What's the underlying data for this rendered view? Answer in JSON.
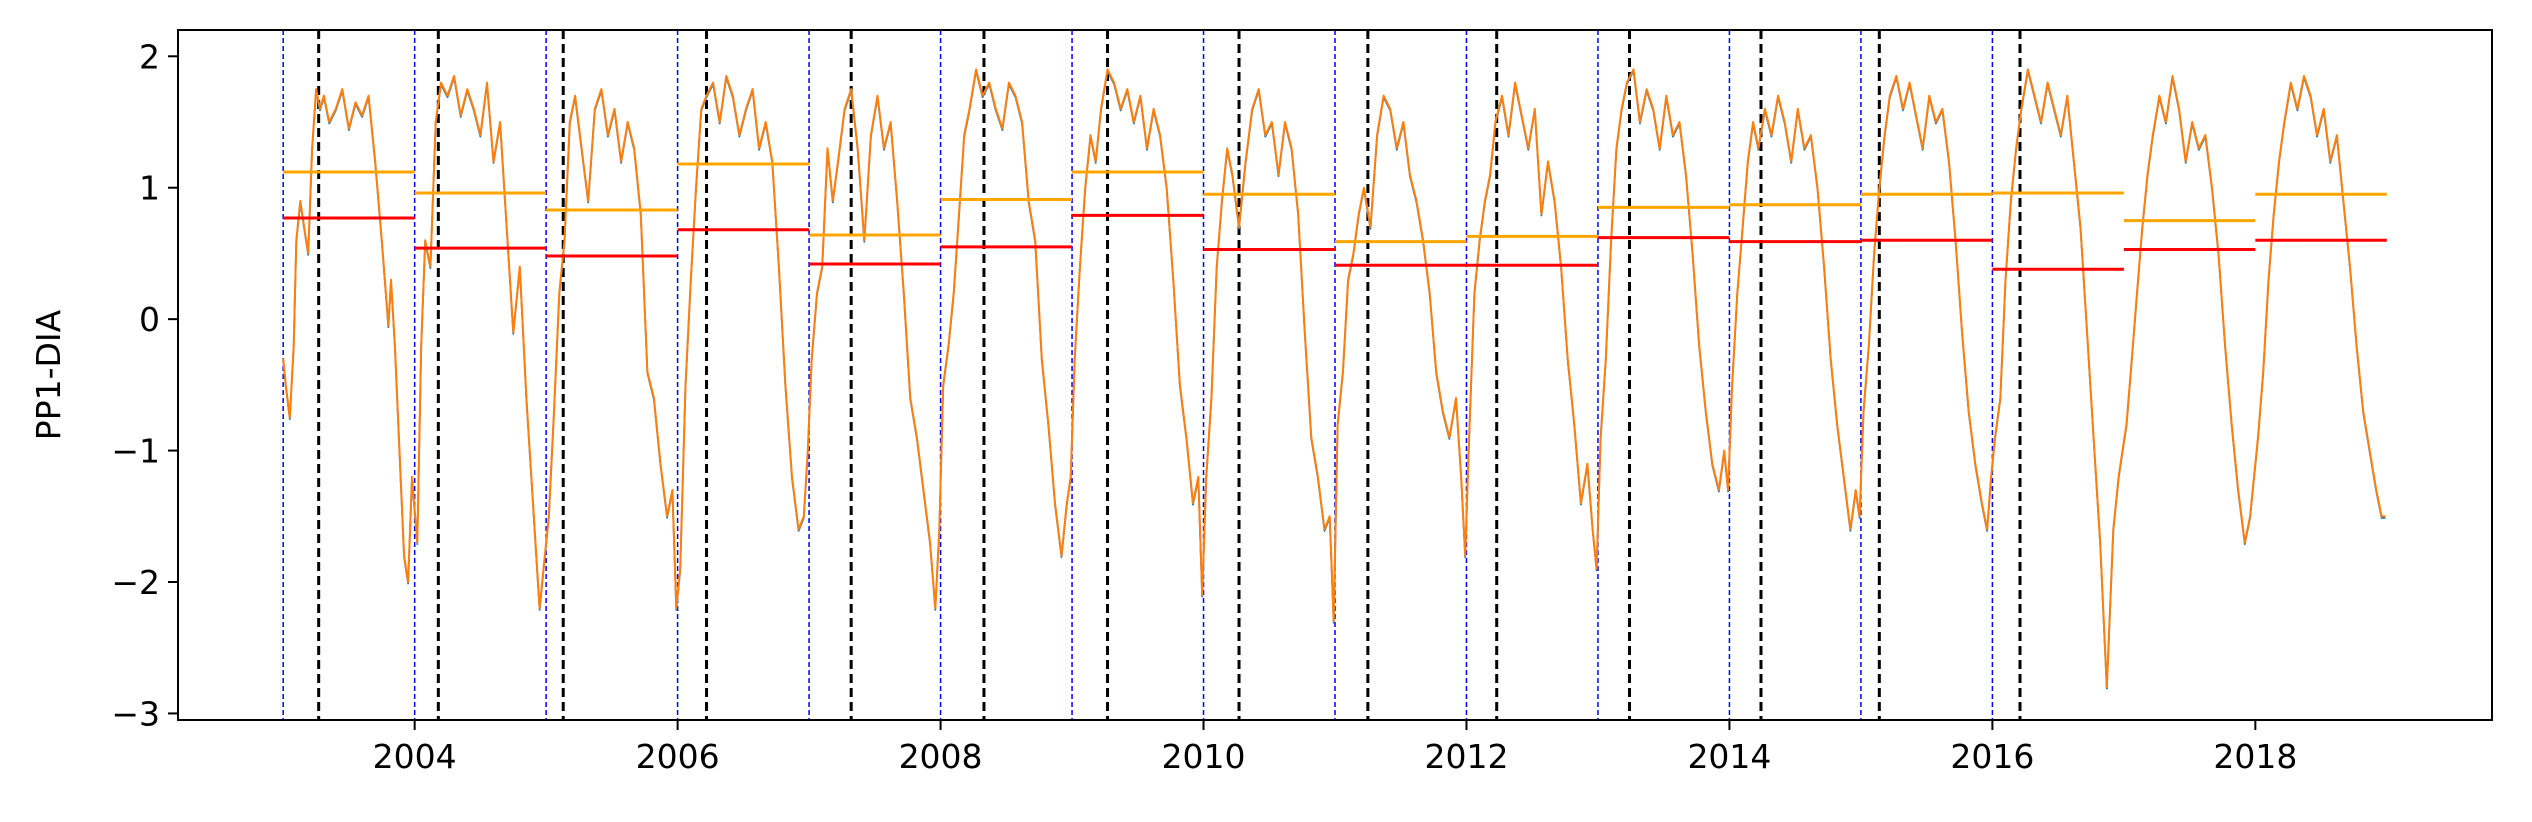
{
  "chart_data": {
    "type": "line",
    "title": "",
    "xlabel": "",
    "ylabel": "PP1-DIA",
    "xlim": [
      2002.2,
      2019.8
    ],
    "ylim": [
      -3.05,
      2.2
    ],
    "grid": false,
    "legend": "none",
    "x_ticks": [
      2004,
      2006,
      2008,
      2010,
      2012,
      2014,
      2016,
      2018
    ],
    "x_tick_labels": [
      "2004",
      "2006",
      "2008",
      "2010",
      "2012",
      "2014",
      "2016",
      "2018"
    ],
    "y_ticks": [
      -3,
      -2,
      -1,
      0,
      1,
      2
    ],
    "y_tick_labels": [
      "−3",
      "−2",
      "−1",
      "0",
      "1",
      "2"
    ],
    "colors": {
      "series_blue": "#1f77b4",
      "series_orange": "#ff7f0e",
      "year_boundary": "#0000ff",
      "event_marker": "#000000",
      "mean_segment": "#ffa500",
      "median_segment": "#ff0000"
    },
    "year_boundaries": [
      2003,
      2004,
      2005,
      2006,
      2007,
      2008,
      2009,
      2010,
      2011,
      2012,
      2013,
      2014,
      2015,
      2016
    ],
    "event_markers": [
      2003.27,
      2004.18,
      2005.13,
      2006.22,
      2007.32,
      2008.33,
      2009.27,
      2010.27,
      2011.25,
      2012.23,
      2013.24,
      2014.24,
      2015.14,
      2016.21
    ],
    "mean_segments": [
      {
        "start": 2003,
        "end": 2004,
        "value": 1.12
      },
      {
        "start": 2004,
        "end": 2005,
        "value": 0.96
      },
      {
        "start": 2005,
        "end": 2006,
        "value": 0.83
      },
      {
        "start": 2006,
        "end": 2007,
        "value": 1.18
      },
      {
        "start": 2007,
        "end": 2008,
        "value": 0.64
      },
      {
        "start": 2008,
        "end": 2009,
        "value": 0.91
      },
      {
        "start": 2009,
        "end": 2010,
        "value": 1.12
      },
      {
        "start": 2010,
        "end": 2011,
        "value": 0.95
      },
      {
        "start": 2011,
        "end": 2012,
        "value": 0.59
      },
      {
        "start": 2012,
        "end": 2013,
        "value": 0.63
      },
      {
        "start": 2013,
        "end": 2014,
        "value": 0.85
      },
      {
        "start": 2014,
        "end": 2015,
        "value": 0.87
      },
      {
        "start": 2015,
        "end": 2016,
        "value": 0.95
      },
      {
        "start": 2016,
        "end": 2017,
        "value": 0.96
      },
      {
        "start": 2017,
        "end": 2018,
        "value": 0.75
      },
      {
        "start": 2018,
        "end": 2019,
        "value": 0.95
      }
    ],
    "median_segments": [
      {
        "start": 2003,
        "end": 2004,
        "value": 0.77
      },
      {
        "start": 2004,
        "end": 2005,
        "value": 0.54
      },
      {
        "start": 2005,
        "end": 2006,
        "value": 0.48
      },
      {
        "start": 2006,
        "end": 2007,
        "value": 0.68
      },
      {
        "start": 2007,
        "end": 2008,
        "value": 0.42
      },
      {
        "start": 2008,
        "end": 2009,
        "value": 0.55
      },
      {
        "start": 2009,
        "end": 2010,
        "value": 0.79
      },
      {
        "start": 2010,
        "end": 2011,
        "value": 0.53
      },
      {
        "start": 2011,
        "end": 2012,
        "value": 0.41
      },
      {
        "start": 2012,
        "end": 2013,
        "value": 0.41
      },
      {
        "start": 2013,
        "end": 2014,
        "value": 0.62
      },
      {
        "start": 2014,
        "end": 2015,
        "value": 0.59
      },
      {
        "start": 2015,
        "end": 2016,
        "value": 0.6
      },
      {
        "start": 2016,
        "end": 2017,
        "value": 0.38
      },
      {
        "start": 2017,
        "end": 2018,
        "value": 0.53
      },
      {
        "start": 2018,
        "end": 2019,
        "value": 0.6
      }
    ],
    "series": [
      {
        "color": "#ff7f0e",
        "x": [
          2003.0,
          2003.02,
          2003.05,
          2003.08,
          2003.1,
          2003.13,
          2003.16,
          2003.19,
          2003.22,
          2003.25,
          2003.28,
          2003.31,
          2003.35,
          2003.4,
          2003.45,
          2003.5,
          2003.55,
          2003.6,
          2003.65,
          2003.7,
          2003.75,
          2003.8,
          2003.82,
          2003.85,
          2003.88,
          2003.92,
          2003.95,
          2003.98,
          2004.02,
          2004.05,
          2004.08,
          2004.12,
          2004.16,
          2004.2,
          2004.25,
          2004.3,
          2004.35,
          2004.4,
          2004.45,
          2004.5,
          2004.55,
          2004.6,
          2004.65,
          2004.7,
          2004.75,
          2004.8,
          2004.85,
          2004.9,
          2004.95,
          2004.98,
          2005.02,
          2005.06,
          2005.1,
          2005.14,
          2005.18,
          2005.22,
          2005.27,
          2005.32,
          2005.37,
          2005.42,
          2005.47,
          2005.52,
          2005.57,
          2005.62,
          2005.67,
          2005.72,
          2005.77,
          2005.82,
          2005.87,
          2005.92,
          2005.96,
          2005.99,
          2006.02,
          2006.06,
          2006.1,
          2006.14,
          2006.18,
          2006.22,
          2006.27,
          2006.32,
          2006.37,
          2006.42,
          2006.47,
          2006.52,
          2006.57,
          2006.62,
          2006.67,
          2006.72,
          2006.77,
          2006.82,
          2006.87,
          2006.92,
          2006.96,
          2006.99,
          2007.02,
          2007.06,
          2007.1,
          2007.14,
          2007.18,
          2007.22,
          2007.27,
          2007.32,
          2007.37,
          2007.42,
          2007.47,
          2007.52,
          2007.57,
          2007.62,
          2007.67,
          2007.72,
          2007.77,
          2007.82,
          2007.87,
          2007.92,
          2007.96,
          2007.99,
          2008.02,
          2008.06,
          2008.1,
          2008.14,
          2008.18,
          2008.22,
          2008.27,
          2008.32,
          2008.37,
          2008.42,
          2008.47,
          2008.52,
          2008.57,
          2008.62,
          2008.67,
          2008.72,
          2008.77,
          2008.82,
          2008.87,
          2008.92,
          2008.96,
          2008.99,
          2009.02,
          2009.06,
          2009.1,
          2009.14,
          2009.18,
          2009.22,
          2009.27,
          2009.32,
          2009.37,
          2009.42,
          2009.47,
          2009.52,
          2009.57,
          2009.62,
          2009.67,
          2009.72,
          2009.77,
          2009.82,
          2009.87,
          2009.92,
          2009.96,
          2009.99,
          2010.02,
          2010.06,
          2010.1,
          2010.14,
          2010.18,
          2010.22,
          2010.27,
          2010.32,
          2010.37,
          2010.42,
          2010.47,
          2010.52,
          2010.57,
          2010.62,
          2010.67,
          2010.72,
          2010.77,
          2010.82,
          2010.87,
          2010.92,
          2010.96,
          2010.99,
          2011.02,
          2011.06,
          2011.1,
          2011.14,
          2011.18,
          2011.22,
          2011.27,
          2011.32,
          2011.37,
          2011.42,
          2011.47,
          2011.52,
          2011.57,
          2011.62,
          2011.67,
          2011.72,
          2011.77,
          2011.82,
          2011.87,
          2011.92,
          2011.96,
          2011.99,
          2012.02,
          2012.06,
          2012.1,
          2012.14,
          2012.18,
          2012.22,
          2012.27,
          2012.32,
          2012.37,
          2012.42,
          2012.47,
          2012.52,
          2012.57,
          2012.62,
          2012.67,
          2012.72,
          2012.77,
          2012.82,
          2012.87,
          2012.92,
          2012.96,
          2012.99,
          2013.02,
          2013.06,
          2013.1,
          2013.14,
          2013.18,
          2013.22,
          2013.27,
          2013.32,
          2013.37,
          2013.42,
          2013.47,
          2013.52,
          2013.57,
          2013.62,
          2013.67,
          2013.72,
          2013.77,
          2013.82,
          2013.87,
          2013.92,
          2013.96,
          2013.99,
          2014.02,
          2014.06,
          2014.1,
          2014.14,
          2014.18,
          2014.22,
          2014.27,
          2014.32,
          2014.37,
          2014.42,
          2014.47,
          2014.52,
          2014.57,
          2014.62,
          2014.67,
          2014.72,
          2014.77,
          2014.82,
          2014.87,
          2014.92,
          2014.96,
          2014.99,
          2015.02,
          2015.06,
          2015.1,
          2015.14,
          2015.18,
          2015.22,
          2015.27,
          2015.32,
          2015.37,
          2015.42,
          2015.47,
          2015.52,
          2015.57,
          2015.62,
          2015.67,
          2015.72,
          2015.77,
          2015.82,
          2015.87,
          2015.92,
          2015.96,
          2015.99,
          2016.02,
          2016.06,
          2016.1,
          2016.14,
          2016.18,
          2016.22,
          2016.27,
          2016.32,
          2016.37,
          2016.42,
          2016.47,
          2016.52,
          2016.57,
          2016.62,
          2016.67,
          2016.72,
          2016.77,
          2016.82,
          2016.87,
          2016.92,
          2016.96,
          2016.99,
          2017.02,
          2017.06,
          2017.1,
          2017.14,
          2017.18,
          2017.22,
          2017.27,
          2017.32,
          2017.37,
          2017.42,
          2017.47,
          2017.52,
          2017.57,
          2017.62,
          2017.67,
          2017.72,
          2017.77,
          2017.82,
          2017.87,
          2017.92,
          2017.96,
          2017.99,
          2018.02,
          2018.06,
          2018.1,
          2018.14,
          2018.18,
          2018.22,
          2018.27,
          2018.32,
          2018.37,
          2018.42,
          2018.47,
          2018.52,
          2018.57,
          2018.62,
          2018.67,
          2018.72,
          2018.77,
          2018.82,
          2018.87,
          2018.92,
          2018.96,
          2018.99
        ],
        "y": [
          -0.3,
          -0.5,
          -0.75,
          -0.2,
          0.6,
          0.9,
          0.7,
          0.5,
          1.3,
          1.75,
          1.6,
          1.7,
          1.5,
          1.6,
          1.75,
          1.45,
          1.65,
          1.55,
          1.7,
          1.2,
          0.6,
          -0.05,
          0.3,
          -0.2,
          -0.9,
          -1.8,
          -2.0,
          -1.2,
          -1.7,
          -0.2,
          0.6,
          0.4,
          1.5,
          1.8,
          1.7,
          1.85,
          1.55,
          1.75,
          1.6,
          1.4,
          1.8,
          1.2,
          1.5,
          0.7,
          -0.1,
          0.4,
          -0.6,
          -1.4,
          -2.2,
          -1.9,
          -1.5,
          -0.7,
          0.2,
          0.6,
          1.5,
          1.7,
          1.3,
          0.9,
          1.6,
          1.75,
          1.4,
          1.6,
          1.2,
          1.5,
          1.3,
          0.8,
          -0.4,
          -0.6,
          -1.1,
          -1.5,
          -1.3,
          -2.2,
          -1.9,
          -0.5,
          0.3,
          1.0,
          1.6,
          1.7,
          1.8,
          1.5,
          1.85,
          1.7,
          1.4,
          1.6,
          1.75,
          1.3,
          1.5,
          1.2,
          0.4,
          -0.5,
          -1.2,
          -1.6,
          -1.5,
          -1.0,
          -0.3,
          0.2,
          0.4,
          1.3,
          0.9,
          1.2,
          1.6,
          1.75,
          1.3,
          0.6,
          1.4,
          1.7,
          1.3,
          1.5,
          0.9,
          0.2,
          -0.6,
          -0.9,
          -1.3,
          -1.7,
          -2.2,
          -1.6,
          -0.5,
          -0.2,
          0.2,
          0.8,
          1.4,
          1.6,
          1.9,
          1.7,
          1.8,
          1.6,
          1.45,
          1.8,
          1.7,
          1.5,
          0.9,
          0.6,
          -0.3,
          -0.8,
          -1.4,
          -1.8,
          -1.4,
          -1.2,
          -0.3,
          0.4,
          1.0,
          1.4,
          1.2,
          1.6,
          1.9,
          1.8,
          1.6,
          1.75,
          1.5,
          1.7,
          1.3,
          1.6,
          1.4,
          1.0,
          0.3,
          -0.5,
          -0.9,
          -1.4,
          -1.2,
          -2.1,
          -1.2,
          -0.6,
          0.4,
          0.9,
          1.3,
          1.1,
          0.7,
          1.2,
          1.6,
          1.75,
          1.4,
          1.5,
          1.1,
          1.5,
          1.3,
          0.8,
          -0.1,
          -0.9,
          -1.2,
          -1.6,
          -1.5,
          -2.3,
          -0.8,
          -0.4,
          0.3,
          0.5,
          0.8,
          1.0,
          0.7,
          1.4,
          1.7,
          1.6,
          1.3,
          1.5,
          1.1,
          0.9,
          0.6,
          0.2,
          -0.4,
          -0.7,
          -0.9,
          -0.6,
          -1.2,
          -1.8,
          -0.9,
          0.2,
          0.6,
          0.9,
          1.1,
          1.5,
          1.7,
          1.4,
          1.8,
          1.55,
          1.3,
          1.6,
          0.8,
          1.2,
          0.9,
          0.4,
          -0.3,
          -0.8,
          -1.4,
          -1.1,
          -1.6,
          -1.9,
          -0.9,
          -0.3,
          0.6,
          1.3,
          1.6,
          1.8,
          1.9,
          1.5,
          1.75,
          1.6,
          1.3,
          1.7,
          1.4,
          1.5,
          1.1,
          0.5,
          -0.2,
          -0.7,
          -1.1,
          -1.3,
          -1.0,
          -1.3,
          -0.5,
          0.2,
          0.7,
          1.2,
          1.5,
          1.3,
          1.6,
          1.4,
          1.7,
          1.5,
          1.2,
          1.6,
          1.3,
          1.4,
          1.0,
          0.4,
          -0.3,
          -0.8,
          -1.2,
          -1.6,
          -1.3,
          -1.5,
          -0.7,
          -0.2,
          0.5,
          1.0,
          1.4,
          1.7,
          1.85,
          1.6,
          1.8,
          1.55,
          1.3,
          1.7,
          1.5,
          1.6,
          1.2,
          0.6,
          -0.1,
          -0.7,
          -1.1,
          -1.4,
          -1.6,
          -1.2,
          -0.9,
          -0.6,
          0.3,
          0.9,
          1.3,
          1.6,
          1.9,
          1.7,
          1.5,
          1.8,
          1.6,
          1.4,
          1.7,
          1.2,
          0.7,
          -0.1,
          -0.9,
          -1.7,
          -2.8,
          -1.6,
          -1.2,
          -1.0,
          -0.8,
          -0.3,
          0.2,
          0.7,
          1.1,
          1.4,
          1.7,
          1.5,
          1.85,
          1.6,
          1.2,
          1.5,
          1.3,
          1.4,
          1.0,
          0.5,
          -0.2,
          -0.8,
          -1.3,
          -1.7,
          -1.5,
          -1.2,
          -0.9,
          -0.4,
          0.3,
          0.8,
          1.2,
          1.5,
          1.8,
          1.6,
          1.85,
          1.7,
          1.4,
          1.6,
          1.2,
          1.4,
          0.9,
          0.4,
          -0.2,
          -0.7,
          -1.0,
          -1.3,
          -1.5,
          -1.5
        ]
      }
    ]
  }
}
